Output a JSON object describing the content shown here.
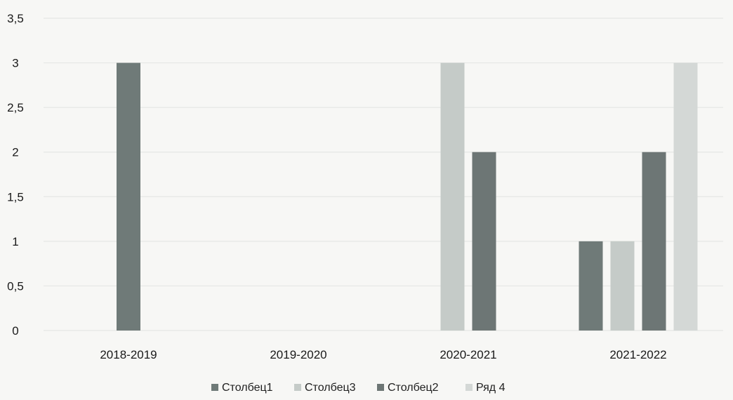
{
  "chart_data": {
    "type": "bar",
    "categories": [
      "2018-2019",
      "2019-2020",
      "2020-2021",
      "2021-2022"
    ],
    "ylim": [
      0,
      3.5
    ],
    "yticks": [
      "0",
      "0,5",
      "1",
      "1,5",
      "2",
      "2,5",
      "3",
      "3,5"
    ],
    "grid": true,
    "legend_placement": "bottom",
    "series": [
      {
        "name": "Столбец1",
        "color": "#6f7a78",
        "values": [
          3,
          null,
          null,
          1
        ]
      },
      {
        "name": "Столбец3",
        "color": "#c5cbc8",
        "values": [
          null,
          null,
          3,
          1
        ]
      },
      {
        "name": "Столбец2",
        "color": "#6d7675",
        "values": [
          null,
          null,
          2,
          2
        ]
      },
      {
        "name": "Ряд 4",
        "color": "#d4d8d6",
        "values": [
          null,
          null,
          null,
          3
        ]
      }
    ]
  }
}
